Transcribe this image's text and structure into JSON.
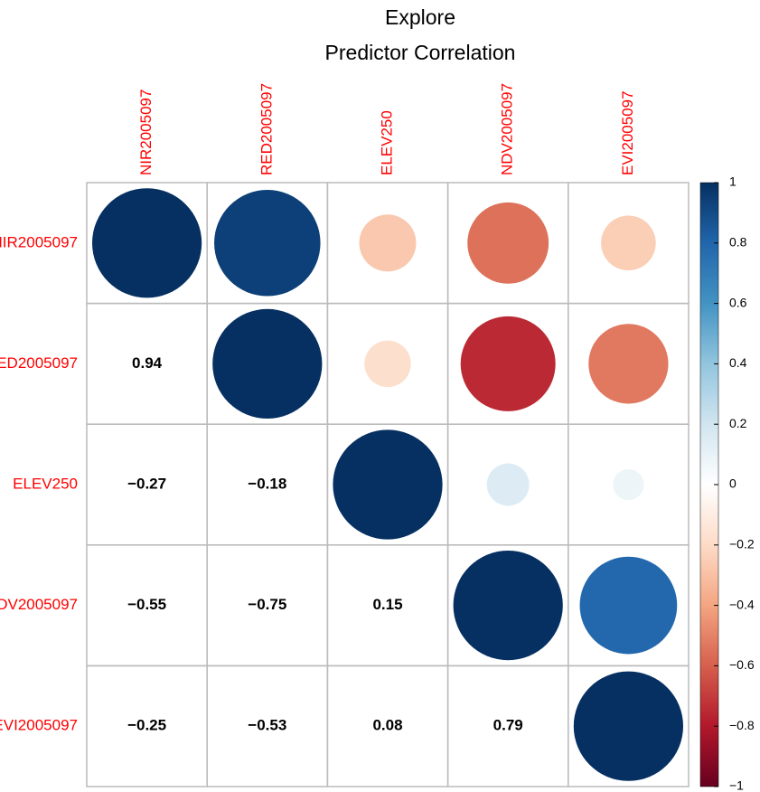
{
  "chart_data": {
    "type": "corrplot",
    "title": "Explore",
    "subtitle": "Predictor Correlation",
    "variables": [
      "NIR2005097",
      "RED2005097",
      "ELEV250",
      "NDV2005097",
      "EVI2005097"
    ],
    "values": [
      [
        1,
        0.94,
        -0.27,
        -0.55,
        -0.25
      ],
      [
        0.94,
        1,
        -0.18,
        -0.75,
        -0.53
      ],
      [
        -0.27,
        -0.18,
        1,
        0.15,
        0.08
      ],
      [
        -0.55,
        -0.75,
        0.15,
        1,
        0.79
      ],
      [
        -0.25,
        -0.53,
        0.08,
        0.79,
        1
      ]
    ],
    "value_labels": [
      [
        null,
        null,
        null,
        null,
        null
      ],
      [
        "0.94",
        null,
        null,
        null,
        null
      ],
      [
        "−0.27",
        "−0.18",
        null,
        null,
        null
      ],
      [
        "−0.55",
        "−0.75",
        "0.15",
        null,
        null
      ],
      [
        "−0.25",
        "−0.53",
        "0.08",
        "0.79",
        null
      ]
    ],
    "label_color": "#ff0000",
    "colors": [
      "#67001F",
      "#B2182B",
      "#D6604D",
      "#F4A582",
      "#FDDBC7",
      "#FFFFFF",
      "#D1E5F0",
      "#92C5DE",
      "#4393C3",
      "#2166AC",
      "#053061"
    ],
    "clim": [
      -1,
      1
    ],
    "cticks": [
      {
        "value": -1,
        "label": "−1"
      },
      {
        "value": -0.8,
        "label": "−0.8"
      },
      {
        "value": -0.6,
        "label": "−0.6"
      },
      {
        "value": -0.4,
        "label": "−0.4"
      },
      {
        "value": -0.2,
        "label": "−0.2"
      },
      0,
      0.2,
      0.4,
      0.6,
      0.8,
      1
    ]
  }
}
